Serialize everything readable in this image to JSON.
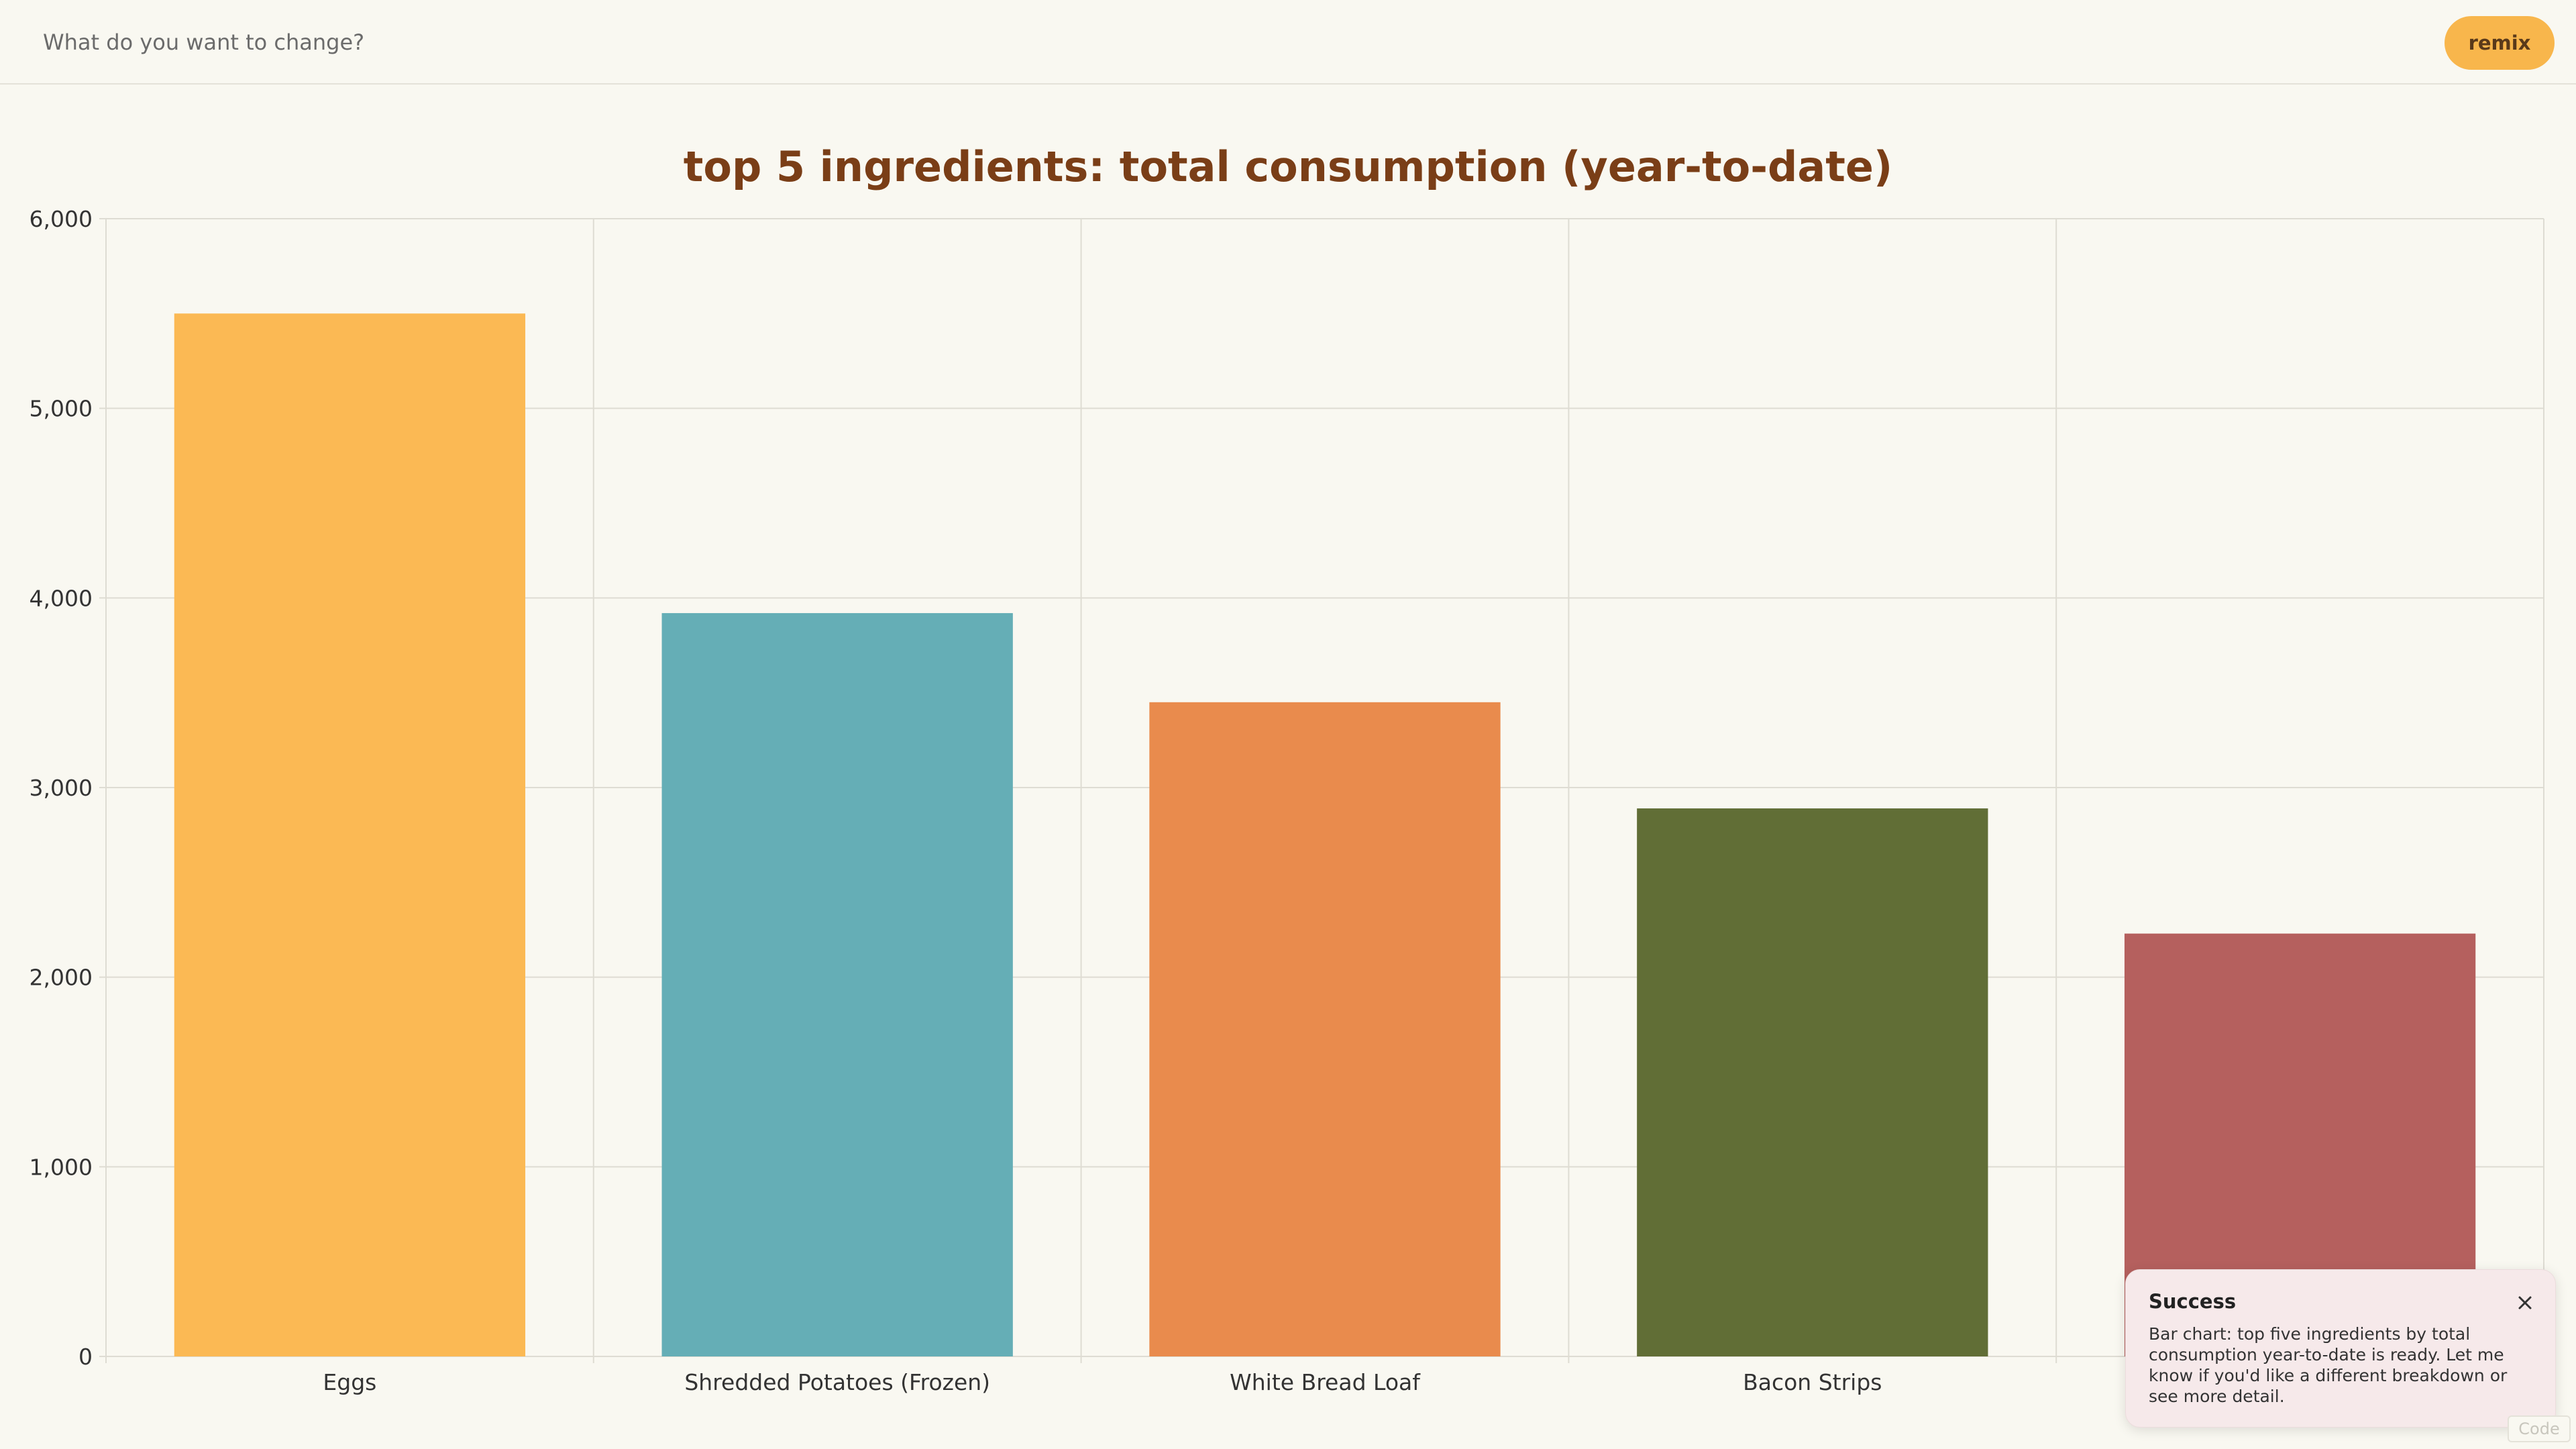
{
  "prompt": {
    "placeholder": "What do you want to change?"
  },
  "remix_label": "remix",
  "code_label": "Code",
  "toast": {
    "title": "Success",
    "message": "Bar chart: top five ingredients by total consumption year-to-date is ready. Let me know if you'd like a different breakdown or see more detail."
  },
  "colors": {
    "accent": "#f8b64c",
    "title": "#7a3e17",
    "grid": "#dedcd3"
  },
  "chart_data": {
    "type": "bar",
    "title": "top 5 ingredients: total consumption (year-to-date)",
    "xlabel": "",
    "ylabel": "",
    "categories": [
      "Eggs",
      "Shredded Potatoes (Frozen)",
      "White Bread Loaf",
      "Bacon Strips",
      ""
    ],
    "values": [
      5500,
      3920,
      3450,
      2890,
      2230
    ],
    "colors": [
      "#fbb954",
      "#65aeb6",
      "#e98b4d",
      "#616e36",
      "#b5605e"
    ],
    "ylim": [
      0,
      6000
    ],
    "yticks": [
      0,
      1000,
      2000,
      3000,
      4000,
      5000,
      6000
    ],
    "ytick_labels": [
      "0",
      "1,000",
      "2,000",
      "3,000",
      "4,000",
      "5,000",
      "6,000"
    ],
    "grid": true,
    "legend": "none"
  }
}
